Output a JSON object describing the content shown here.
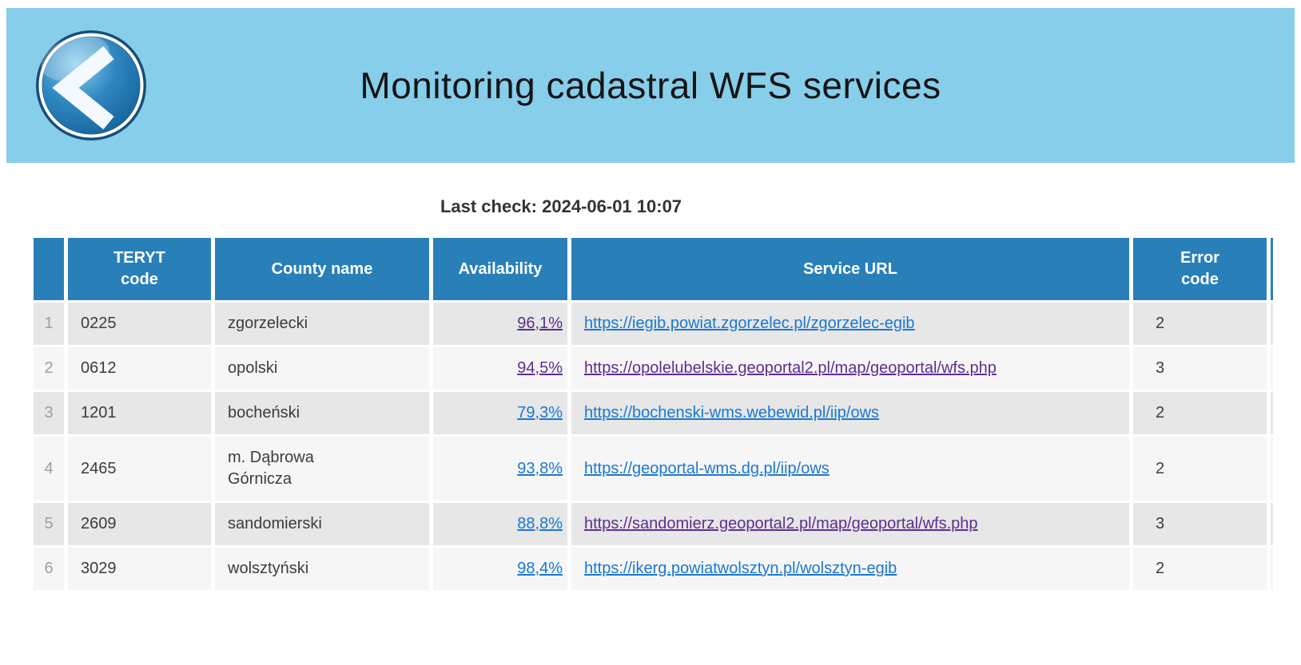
{
  "colors": {
    "banner_bg": "#87CEEB",
    "table_header_bg": "#2980B9",
    "row_odd_bg": "#E7E7E7",
    "row_even_bg": "#F6F6F6",
    "link_blue": "#1A78D2",
    "link_visited_purple": "#5E2D91"
  },
  "banner": {
    "title": "Monitoring cadastral WFS services",
    "back_icon": "back-circle-icon"
  },
  "status": {
    "label": "Last check:",
    "timestamp": "2024-06-01 10:07"
  },
  "table": {
    "columns": [
      "",
      "TERYT\ncode",
      "County name",
      "Availability",
      "Service URL",
      "Error\ncode"
    ],
    "rows": [
      {
        "num": "1",
        "teryt": "0225",
        "county": "zgorzelecki",
        "availability": "96,1%",
        "availability_state": "visited",
        "url": "https://iegib.powiat.zgorzelec.pl/zgorzelec-egib",
        "url_state": "unvisited",
        "error_code": "2"
      },
      {
        "num": "2",
        "teryt": "0612",
        "county": "opolski",
        "availability": "94,5%",
        "availability_state": "visited",
        "url": "https://opolelubelskie.geoportal2.pl/map/geoportal/wfs.php",
        "url_state": "visited",
        "error_code": "3"
      },
      {
        "num": "3",
        "teryt": "1201",
        "county": "bocheński",
        "availability": "79,3%",
        "availability_state": "unvisited",
        "url": "https://bochenski-wms.webewid.pl/iip/ows",
        "url_state": "unvisited",
        "error_code": "2"
      },
      {
        "num": "4",
        "teryt": "2465",
        "county": "m. Dąbrowa Górnicza",
        "availability": "93,8%",
        "availability_state": "unvisited",
        "url": "https://geoportal-wms.dg.pl/iip/ows",
        "url_state": "unvisited",
        "error_code": "2"
      },
      {
        "num": "5",
        "teryt": "2609",
        "county": "sandomierski",
        "availability": "88,8%",
        "availability_state": "unvisited",
        "url": "https://sandomierz.geoportal2.pl/map/geoportal/wfs.php",
        "url_state": "visited",
        "error_code": "3"
      },
      {
        "num": "6",
        "teryt": "3029",
        "county": "wolsztyński",
        "availability": "98,4%",
        "availability_state": "unvisited",
        "url": "https://ikerg.powiatwolsztyn.pl/wolsztyn-egib",
        "url_state": "unvisited",
        "error_code": "2"
      }
    ]
  }
}
